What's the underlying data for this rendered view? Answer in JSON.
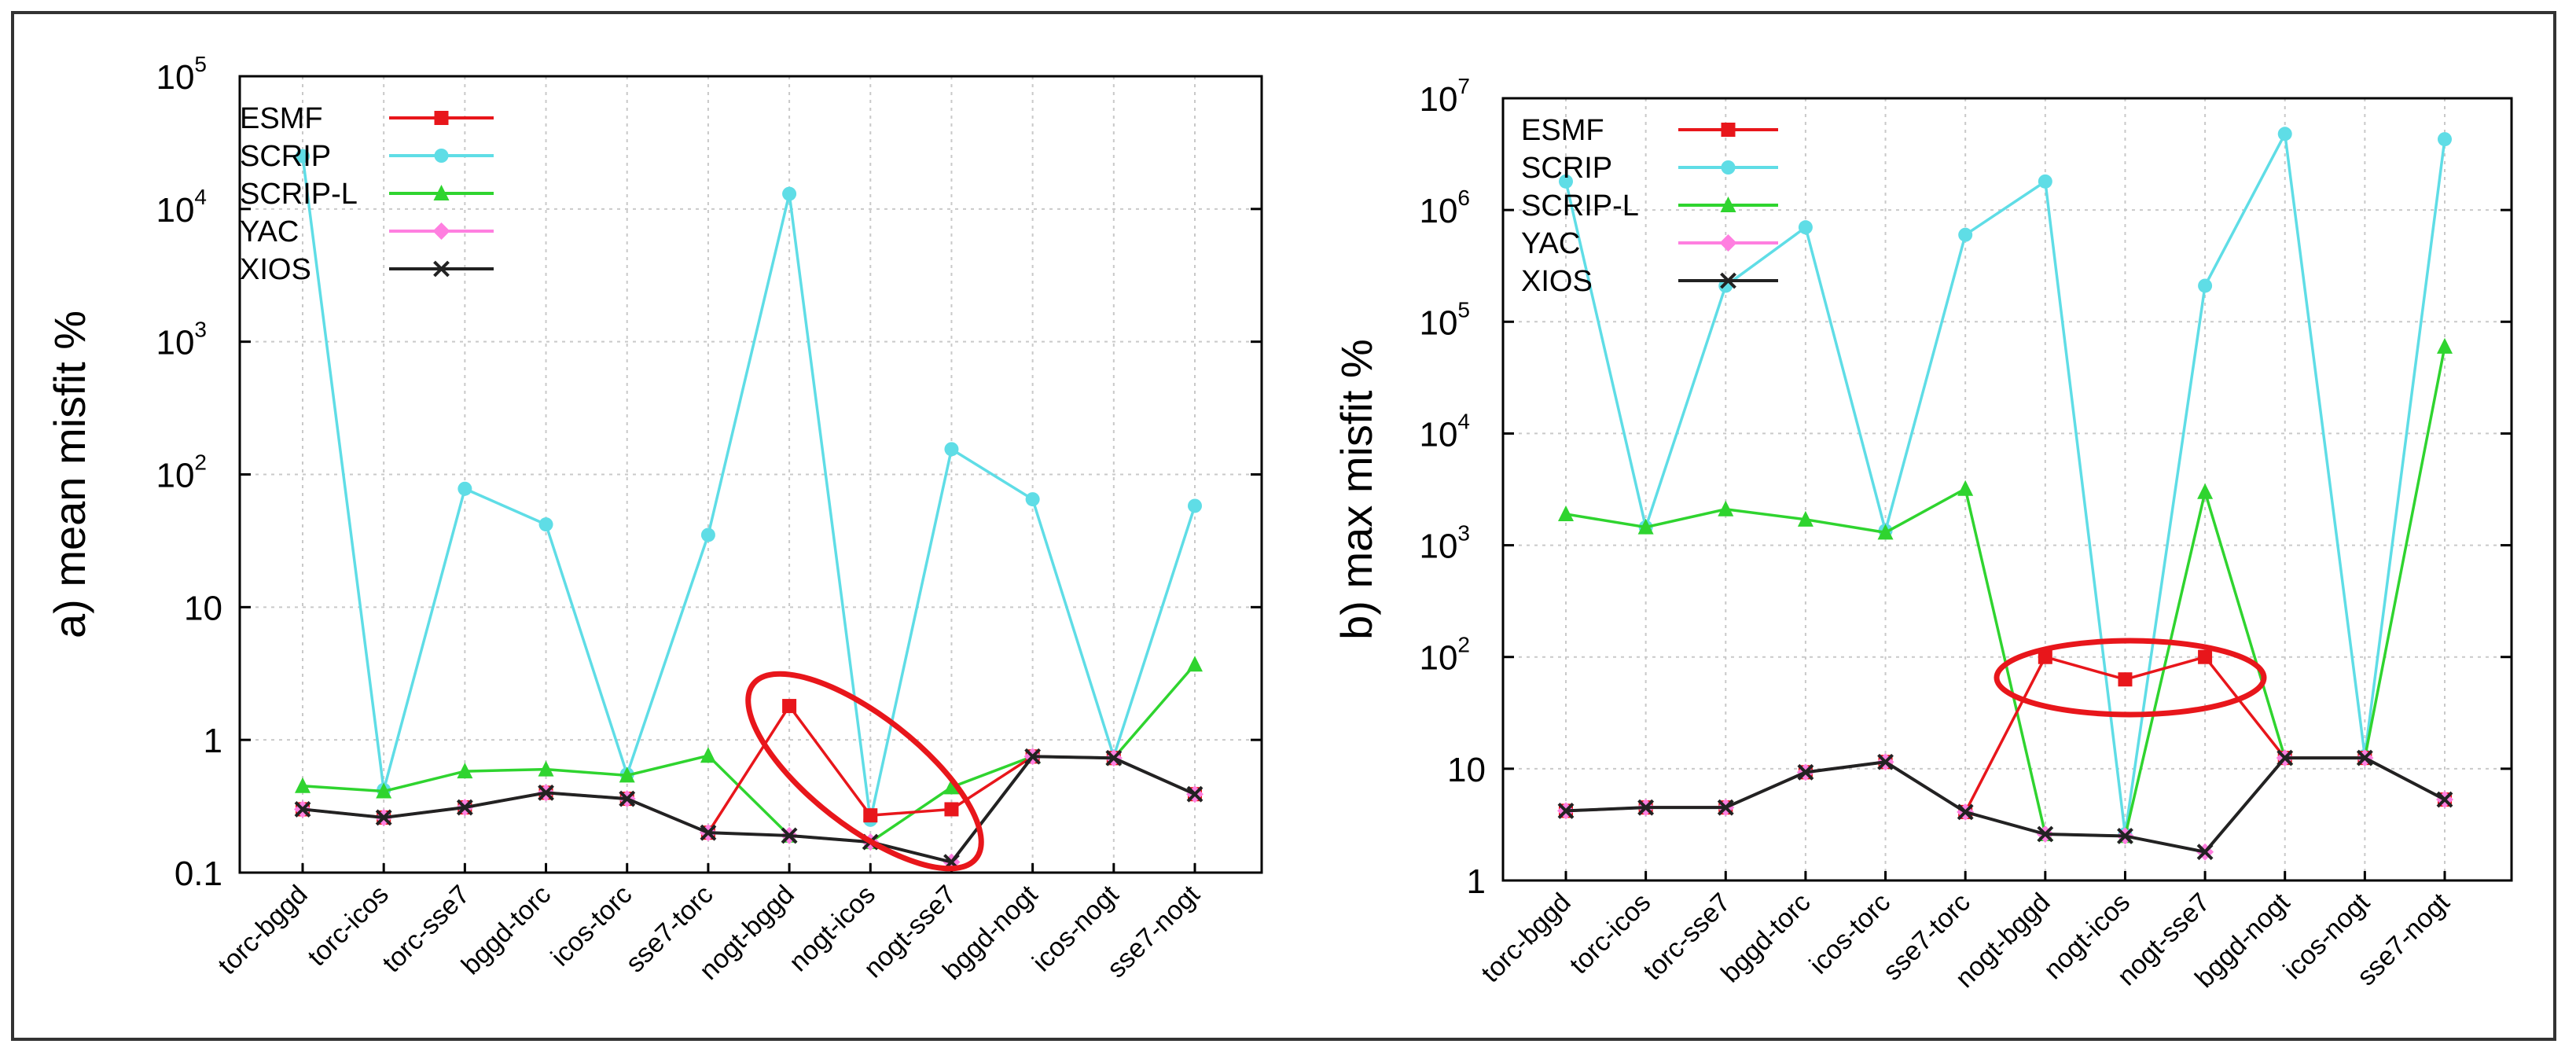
{
  "chart_data": [
    {
      "type": "line",
      "scale": "log",
      "ylabel": "a) mean misfit %",
      "ylim": [
        0.1,
        100000
      ],
      "yticks": [
        {
          "value": 0.1,
          "base": "0.1",
          "exp": ""
        },
        {
          "value": 1,
          "base": "1",
          "exp": ""
        },
        {
          "value": 10,
          "base": "10",
          "exp": ""
        },
        {
          "value": 100,
          "base": "10",
          "exp": "2"
        },
        {
          "value": 1000,
          "base": "10",
          "exp": "3"
        },
        {
          "value": 10000,
          "base": "10",
          "exp": "4"
        },
        {
          "value": 100000,
          "base": "10",
          "exp": "5"
        }
      ],
      "categories": [
        "torc-bggd",
        "torc-icos",
        "torc-sse7",
        "bggd-torc",
        "icos-torc",
        "sse7-torc",
        "nogt-bggd",
        "nogt-icos",
        "nogt-sse7",
        "bggd-nogt",
        "icos-nogt",
        "sse7-nogt"
      ],
      "series": [
        {
          "name": "ESMF",
          "color": "#e8161b",
          "marker": "square",
          "values": [
            0.3,
            0.26,
            0.31,
            0.4,
            0.36,
            0.2,
            1.8,
            0.27,
            0.3,
            0.75,
            0.73,
            0.39
          ]
        },
        {
          "name": "SCRIP",
          "color": "#5fdde6",
          "marker": "circle",
          "values": [
            25000,
            0.42,
            78,
            42,
            0.55,
            35,
            13000,
            0.25,
            155,
            65,
            0.75,
            58
          ]
        },
        {
          "name": "SCRIP-L",
          "color": "#2fd42f",
          "marker": "triangle",
          "values": [
            0.45,
            0.41,
            0.58,
            0.6,
            0.54,
            0.76,
            0.19,
            0.17,
            0.44,
            0.75,
            0.73,
            3.7
          ]
        },
        {
          "name": "YAC",
          "color": "#ff7fe0",
          "marker": "diamond",
          "values": [
            0.3,
            0.26,
            0.31,
            0.4,
            0.36,
            0.2,
            0.19,
            0.17,
            0.12,
            0.75,
            0.73,
            0.39
          ]
        },
        {
          "name": "XIOS",
          "color": "#222222",
          "marker": "cross",
          "values": [
            0.3,
            0.26,
            0.31,
            0.4,
            0.36,
            0.2,
            0.19,
            0.17,
            0.12,
            0.75,
            0.73,
            0.39
          ]
        }
      ]
    },
    {
      "type": "line",
      "scale": "log",
      "ylabel": "b) max misfit %",
      "ylim": [
        1,
        10000000
      ],
      "yticks": [
        {
          "value": 1,
          "base": "1",
          "exp": ""
        },
        {
          "value": 10,
          "base": "10",
          "exp": ""
        },
        {
          "value": 100,
          "base": "10",
          "exp": "2"
        },
        {
          "value": 1000,
          "base": "10",
          "exp": "3"
        },
        {
          "value": 10000,
          "base": "10",
          "exp": "4"
        },
        {
          "value": 100000,
          "base": "10",
          "exp": "5"
        },
        {
          "value": 1000000,
          "base": "10",
          "exp": "6"
        },
        {
          "value": 10000000,
          "base": "10",
          "exp": "7"
        }
      ],
      "categories": [
        "torc-bggd",
        "torc-icos",
        "torc-sse7",
        "bggd-torc",
        "icos-torc",
        "sse7-torc",
        "nogt-bggd",
        "nogt-icos",
        "nogt-sse7",
        "bggd-nogt",
        "icos-nogt",
        "sse7-nogt"
      ],
      "series": [
        {
          "name": "ESMF",
          "color": "#e8161b",
          "marker": "square",
          "values": [
            4.2,
            4.5,
            4.5,
            9.3,
            11.5,
            4.1,
            100,
            63,
            100,
            12.5,
            12.5,
            5.3
          ]
        },
        {
          "name": "SCRIP",
          "color": "#5fdde6",
          "marker": "circle",
          "values": [
            1800000,
            1450,
            210000,
            700000,
            1350,
            600000,
            1800000,
            2.6,
            210000,
            4800000,
            13,
            4300000
          ]
        },
        {
          "name": "SCRIP-L",
          "color": "#2fd42f",
          "marker": "triangle",
          "values": [
            1900,
            1450,
            2100,
            1700,
            1300,
            3200,
            2.6,
            2.5,
            3000,
            12.5,
            12.5,
            60000
          ]
        },
        {
          "name": "YAC",
          "color": "#ff7fe0",
          "marker": "diamond",
          "values": [
            4.2,
            4.5,
            4.5,
            9.3,
            11.5,
            4.1,
            2.6,
            2.5,
            1.8,
            12.5,
            12.5,
            5.3
          ]
        },
        {
          "name": "XIOS",
          "color": "#222222",
          "marker": "cross",
          "values": [
            4.2,
            4.5,
            4.5,
            9.3,
            11.5,
            4.1,
            2.6,
            2.5,
            1.8,
            12.5,
            12.5,
            5.3
          ]
        }
      ]
    }
  ]
}
